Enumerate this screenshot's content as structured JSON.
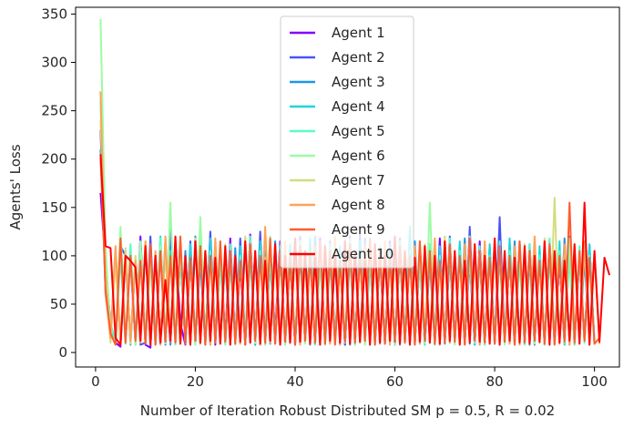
{
  "chart_data": {
    "type": "line",
    "title": "",
    "xlabel": "Number of Iteration Robust Distributed SM p = 0.5, R = 0.02",
    "ylabel": "Agents' Loss",
    "xlim": [
      -4,
      105
    ],
    "ylim": [
      -15,
      357
    ],
    "xticks": [
      0,
      20,
      40,
      60,
      80,
      100
    ],
    "yticks": [
      0,
      50,
      100,
      150,
      200,
      250,
      300,
      350
    ],
    "grid": false,
    "legend_position": "upper center",
    "series": [
      {
        "name": "Agent 1",
        "color": "#8000ff",
        "values": [
          165,
          92,
          30,
          10,
          6,
          100,
          95,
          10,
          120,
          8,
          5,
          100,
          10,
          110,
          9,
          115,
          30,
          8,
          95,
          12,
          110,
          10,
          120,
          8,
          100,
          15,
          118,
          10,
          90,
          8,
          122,
          12,
          105,
          9,
          100,
          20,
          115,
          10,
          95,
          8,
          112,
          11,
          100,
          9,
          118,
          10,
          105,
          14,
          95,
          8,
          120,
          10,
          100,
          12,
          110,
          9,
          98,
          10,
          115,
          8,
          105,
          12,
          100,
          9,
          110,
          10,
          95,
          11,
          118,
          9,
          100,
          12,
          108,
          10,
          95,
          8,
          115,
          11,
          100,
          9,
          110,
          10,
          98,
          12,
          105,
          9,
          112,
          10,
          100,
          8,
          115,
          11,
          95,
          9,
          108,
          10,
          100,
          12,
          110,
          9
        ]
      },
      {
        "name": "Agent 2",
        "color": "#4a52fa",
        "values": [
          230,
          60,
          20,
          8,
          110,
          100,
          12,
          95,
          8,
          10,
          120,
          9,
          105,
          8,
          130,
          12,
          100,
          9,
          115,
          10,
          95,
          8,
          125,
          11,
          110,
          9,
          100,
          12,
          118,
          10,
          105,
          8,
          125,
          11,
          95,
          9,
          112,
          10,
          100,
          8,
          120,
          12,
          105,
          9,
          98,
          10,
          115,
          11,
          100,
          8,
          110,
          9,
          122,
          10,
          95,
          12,
          108,
          9,
          100,
          8,
          118,
          11,
          105,
          10,
          95,
          9,
          112,
          8,
          100,
          12,
          120,
          10,
          105,
          9,
          130,
          11,
          100,
          8,
          110,
          10,
          140,
          12,
          98,
          9,
          115,
          10,
          105,
          8,
          100,
          11,
          112,
          9,
          95,
          10,
          120,
          8,
          105,
          12,
          110,
          9
        ]
      },
      {
        "name": "Agent 3",
        "color": "#1b96ec",
        "values": [
          210,
          80,
          15,
          100,
          10,
          105,
          8,
          95,
          12,
          110,
          9,
          100,
          10,
          115,
          8,
          98,
          11,
          105,
          9,
          120,
          10,
          100,
          8,
          112,
          12,
          95,
          9,
          108,
          10,
          118,
          11,
          100,
          8,
          105,
          9,
          115,
          12,
          98,
          10,
          110,
          9,
          100,
          8,
          120,
          11,
          105,
          10,
          95,
          9,
          112,
          8,
          100,
          12,
          118,
          10,
          105,
          9,
          98,
          11,
          110,
          8,
          100,
          10,
          115,
          9,
          105,
          12,
          95,
          8,
          112,
          10,
          100,
          11,
          118,
          9,
          105,
          8,
          98,
          12,
          110,
          10,
          100,
          9,
          115,
          11,
          105,
          8,
          95,
          10,
          112,
          9,
          100,
          12,
          118,
          8,
          105,
          10,
          98,
          9
        ]
      },
      {
        "name": "Agent 4",
        "color": "#1fd5db",
        "values": [
          200,
          95,
          25,
          8,
          108,
          12,
          100,
          10,
          115,
          9,
          95,
          8,
          120,
          11,
          105,
          10,
          98,
          9,
          112,
          8,
          100,
          12,
          118,
          10,
          105,
          9,
          95,
          11,
          110,
          8,
          100,
          10,
          115,
          9,
          105,
          12,
          98,
          8,
          112,
          10,
          100,
          11,
          118,
          9,
          105,
          8,
          95,
          12,
          110,
          10,
          100,
          9,
          115,
          11,
          105,
          8,
          98,
          10,
          112,
          9,
          100,
          12,
          130,
          10,
          105,
          8,
          95,
          11,
          110,
          9,
          100,
          10,
          115,
          12,
          105,
          8,
          98,
          9,
          112,
          11,
          100,
          10,
          118,
          8,
          105,
          12,
          95,
          9,
          110,
          10,
          100,
          11,
          115,
          8,
          105,
          9,
          98,
          12,
          112,
          10
        ]
      },
      {
        "name": "Agent 5",
        "color": "#5dfbc6",
        "values": [
          260,
          70,
          30,
          10,
          100,
          9,
          112,
          8,
          95,
          12,
          105,
          10,
          118,
          9,
          100,
          8,
          110,
          11,
          98,
          10,
          115,
          9,
          105,
          12,
          95,
          8,
          112,
          10,
          100,
          11,
          120,
          9,
          105,
          8,
          98,
          12,
          110,
          10,
          100,
          9,
          115,
          11,
          105,
          8,
          95,
          10,
          112,
          9,
          100,
          12,
          118,
          8,
          105,
          10,
          98,
          9,
          110,
          11,
          100,
          8,
          115,
          12,
          105,
          10,
          95,
          9,
          112,
          8,
          100,
          11,
          118,
          10,
          105,
          9,
          98,
          12,
          110,
          8,
          100,
          10,
          115,
          11,
          105,
          9,
          95,
          8,
          112,
          12,
          100,
          10,
          118,
          9,
          105,
          11,
          98,
          8,
          110,
          10,
          100,
          12
        ]
      },
      {
        "name": "Agent 6",
        "color": "#9cfca4",
        "values": [
          345,
          110,
          20,
          8,
          130,
          10,
          100,
          9,
          115,
          12,
          95,
          8,
          110,
          10,
          155,
          9,
          105,
          11,
          98,
          8,
          140,
          10,
          100,
          12,
          115,
          9,
          105,
          8,
          95,
          11,
          112,
          10,
          100,
          9,
          120,
          12,
          105,
          8,
          98,
          10,
          115,
          9,
          100,
          11,
          110,
          8,
          105,
          12,
          95,
          10,
          112,
          9,
          100,
          8,
          118,
          11,
          105,
          10,
          98,
          9,
          110,
          12,
          100,
          8,
          115,
          10,
          155,
          9,
          95,
          11,
          112,
          8,
          100,
          12,
          120,
          10,
          105,
          9,
          98,
          11,
          110,
          8,
          100,
          10,
          115,
          12,
          105,
          9,
          95,
          8,
          112,
          11,
          100,
          10,
          118,
          9,
          105,
          12,
          98,
          8
        ]
      },
      {
        "name": "Agent 7",
        "color": "#d4dd80",
        "values": [
          240,
          85,
          10,
          95,
          12,
          108,
          9,
          100,
          10,
          115,
          8,
          98,
          11,
          105,
          12,
          110,
          9,
          100,
          8,
          118,
          10,
          105,
          11,
          95,
          9,
          112,
          8,
          100,
          12,
          120,
          10,
          105,
          9,
          98,
          11,
          110,
          8,
          100,
          10,
          115,
          12,
          105,
          9,
          95,
          8,
          112,
          11,
          100,
          10,
          118,
          9,
          105,
          12,
          98,
          8,
          110,
          10,
          100,
          11,
          115,
          9,
          105,
          8,
          95,
          12,
          112,
          10,
          100,
          9,
          120,
          11,
          105,
          8,
          98,
          10,
          110,
          12,
          100,
          9,
          115,
          8,
          105,
          11,
          95,
          10,
          112,
          9,
          100,
          12,
          118,
          8,
          160,
          10,
          105,
          11,
          98,
          9,
          110,
          8,
          100,
          12
        ]
      },
      {
        "name": "Agent 8",
        "color": "#ffa256",
        "values": [
          270,
          60,
          15,
          110,
          8,
          100,
          12,
          95,
          10,
          115,
          9,
          105,
          8,
          120,
          11,
          100,
          10,
          95,
          12,
          110,
          9,
          105,
          8,
          118,
          10,
          100,
          11,
          95,
          9,
          112,
          12,
          105,
          8,
          130,
          10,
          100,
          9,
          115,
          11,
          105,
          8,
          95,
          12,
          110,
          10,
          100,
          9,
          120,
          8,
          105,
          11,
          98,
          10,
          112,
          12,
          100,
          9,
          115,
          8,
          105,
          10,
          95,
          11,
          110,
          9,
          100,
          12,
          118,
          8,
          105,
          10,
          98,
          9,
          112,
          11,
          100,
          8,
          115,
          12,
          105,
          10,
          95,
          9,
          110,
          8,
          100,
          11,
          120,
          10,
          105,
          12,
          98,
          9,
          112,
          8,
          100,
          10,
          115,
          11,
          105,
          9
        ]
      },
      {
        "name": "Agent 9",
        "color": "#ff5c2e",
        "values": [
          205,
          65,
          20,
          8,
          118,
          10,
          100,
          12,
          95,
          9,
          112,
          8,
          105,
          11,
          100,
          10,
          120,
          9,
          98,
          12,
          110,
          8,
          100,
          10,
          115,
          11,
          105,
          9,
          95,
          8,
          112,
          12,
          100,
          10,
          118,
          9,
          105,
          11,
          98,
          8,
          110,
          12,
          100,
          10,
          115,
          9,
          105,
          8,
          95,
          11,
          112,
          10,
          100,
          12,
          118,
          8,
          105,
          9,
          98,
          11,
          110,
          10,
          100,
          8,
          115,
          12,
          105,
          9,
          95,
          10,
          112,
          11,
          100,
          8,
          118,
          12,
          105,
          10,
          98,
          9,
          110,
          11,
          100,
          8,
          115,
          10,
          105,
          12,
          95,
          9,
          112,
          8,
          100,
          11,
          155,
          10,
          105,
          12,
          98,
          9,
          15
        ]
      },
      {
        "name": "Agent 10",
        "color": "#ff0000",
        "values": [
          205,
          110,
          108,
          15,
          8,
          100,
          95,
          88,
          12,
          110,
          8,
          100,
          10,
          75,
          12,
          120,
          9,
          100,
          8,
          115,
          10,
          105,
          12,
          98,
          9,
          110,
          8,
          100,
          11,
          115,
          10,
          105,
          9,
          95,
          12,
          112,
          8,
          100,
          10,
          118,
          11,
          105,
          9,
          98,
          8,
          110,
          12,
          100,
          10,
          115,
          9,
          105,
          11,
          95,
          8,
          112,
          10,
          100,
          12,
          120,
          9,
          105,
          8,
          98,
          11,
          110,
          10,
          100,
          9,
          115,
          12,
          105,
          8,
          95,
          10,
          112,
          11,
          100,
          9,
          118,
          8,
          105,
          12,
          98,
          10,
          110,
          9,
          100,
          11,
          115,
          8,
          105,
          10,
          95,
          12,
          112,
          9,
          155,
          8,
          105,
          11,
          98,
          80
        ]
      }
    ]
  }
}
